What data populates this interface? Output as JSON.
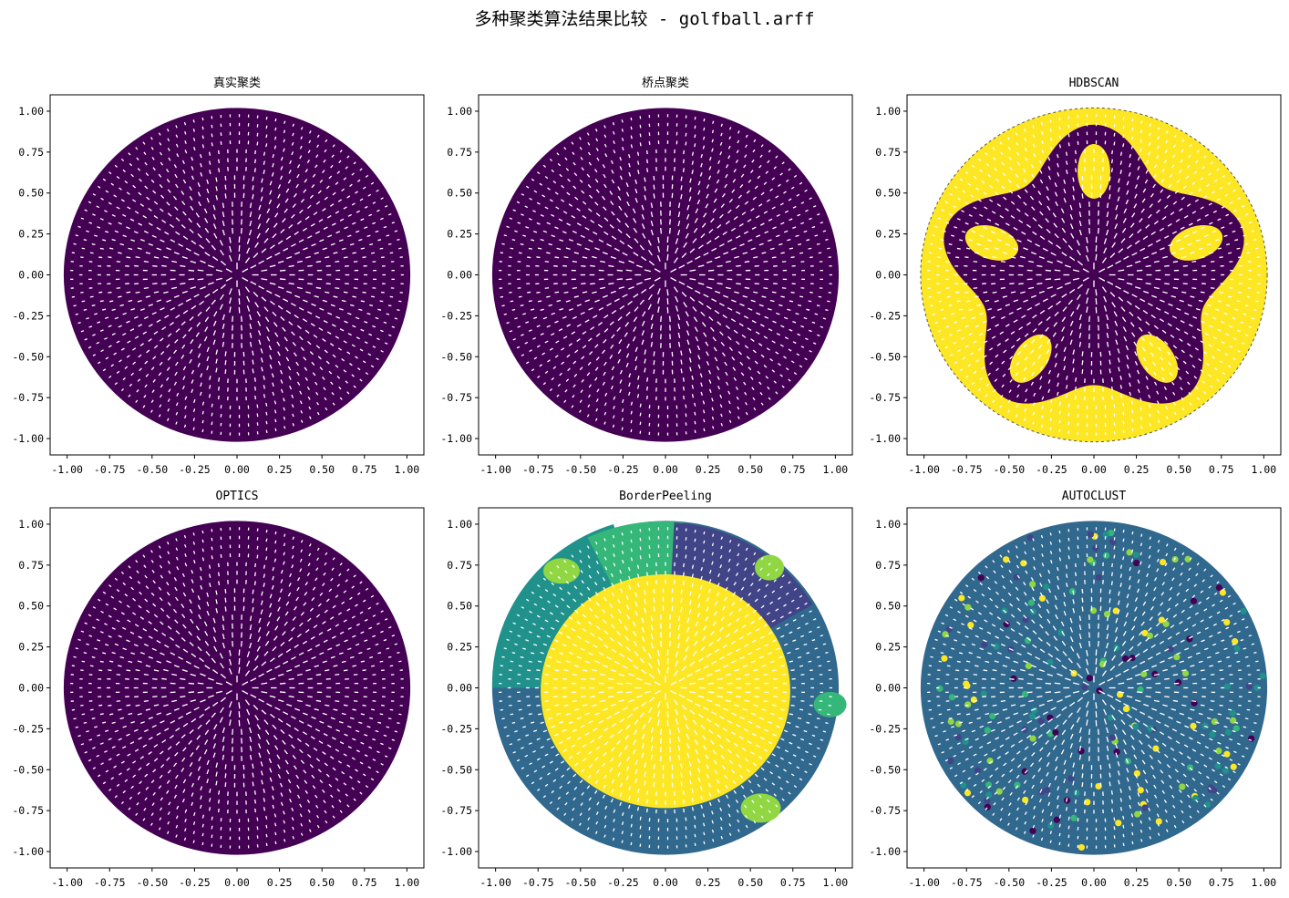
{
  "figure": {
    "title": "多种聚类算法结果比较 - golfball.arff"
  },
  "palette": {
    "purple": "#440154",
    "indigo": "#414487",
    "blue": "#31688e",
    "teal": "#21918c",
    "green": "#35b779",
    "lime": "#90d743",
    "yellow": "#fde725",
    "background": "#ffffff"
  },
  "chart_data": [
    {
      "type": "scatter",
      "title": "真实聚类",
      "xlim": [
        -1.1,
        1.1
      ],
      "ylim": [
        -1.1,
        1.1
      ],
      "xticks": [
        "-1.00",
        "-0.75",
        "-0.50",
        "-0.25",
        "0.00",
        "0.25",
        "0.50",
        "0.75",
        "1.00"
      ],
      "yticks": [
        "1.00",
        "0.75",
        "0.50",
        "0.25",
        "0.00",
        "-0.25",
        "-0.50",
        "-0.75",
        "-1.00"
      ],
      "grid": false,
      "points": "sphere surface points projected to the unit disk, radius about 1.02",
      "clusters": [
        {
          "color": "purple",
          "region": "all"
        }
      ]
    },
    {
      "type": "scatter",
      "title": "桥点聚类",
      "xlim": [
        -1.1,
        1.1
      ],
      "ylim": [
        -1.1,
        1.1
      ],
      "xticks": [
        "-1.00",
        "-0.75",
        "-0.50",
        "-0.25",
        "0.00",
        "0.25",
        "0.50",
        "0.75",
        "1.00"
      ],
      "yticks": [
        "1.00",
        "0.75",
        "0.50",
        "0.25",
        "0.00",
        "-0.25",
        "-0.50",
        "-0.75",
        "-1.00"
      ],
      "grid": false,
      "clusters": [
        {
          "color": "purple",
          "region": "all"
        }
      ]
    },
    {
      "type": "scatter",
      "title": "HDBSCAN",
      "xlim": [
        -1.1,
        1.1
      ],
      "ylim": [
        -1.1,
        1.1
      ],
      "xticks": [
        "-1.00",
        "-0.75",
        "-0.50",
        "-0.25",
        "0.00",
        "0.25",
        "0.50",
        "0.75",
        "1.00"
      ],
      "yticks": [
        "1.00",
        "0.75",
        "0.50",
        "0.25",
        "0.00",
        "-0.25",
        "-0.50",
        "-0.75",
        "-1.00"
      ],
      "grid": false,
      "clusters": [
        {
          "color": "yellow",
          "region": "outer ring and five notches"
        },
        {
          "color": "purple",
          "region": "inner five-lobed star"
        },
        {
          "color": "teal",
          "region": "small streaks"
        }
      ]
    },
    {
      "type": "scatter",
      "title": "OPTICS",
      "xlim": [
        -1.1,
        1.1
      ],
      "ylim": [
        -1.1,
        1.1
      ],
      "xticks": [
        "-1.00",
        "-0.75",
        "-0.50",
        "-0.25",
        "0.00",
        "0.25",
        "0.50",
        "0.75",
        "1.00"
      ],
      "yticks": [
        "1.00",
        "0.75",
        "0.50",
        "0.25",
        "0.00",
        "-0.25",
        "-0.50",
        "-0.75",
        "-1.00"
      ],
      "grid": false,
      "clusters": [
        {
          "color": "purple",
          "region": "all"
        }
      ]
    },
    {
      "type": "scatter",
      "title": "BorderPeeling",
      "xlim": [
        -1.1,
        1.1
      ],
      "ylim": [
        -1.1,
        1.1
      ],
      "xticks": [
        "-1.00",
        "-0.75",
        "-0.50",
        "-0.25",
        "0.00",
        "0.25",
        "0.50",
        "0.75",
        "1.00"
      ],
      "yticks": [
        "1.00",
        "0.75",
        "0.50",
        "0.25",
        "0.00",
        "-0.25",
        "-0.50",
        "-0.75",
        "-1.00"
      ],
      "grid": false,
      "clusters": [
        {
          "color": "blue",
          "region": "outer ring"
        },
        {
          "color": "teal",
          "region": "upper-left band"
        },
        {
          "color": "green",
          "region": "top band"
        },
        {
          "color": "indigo",
          "region": "upper-right"
        },
        {
          "color": "lime",
          "region": "small patches"
        },
        {
          "color": "yellow",
          "region": "central disk"
        }
      ]
    },
    {
      "type": "scatter",
      "title": "AUTOCLUST",
      "xlim": [
        -1.1,
        1.1
      ],
      "ylim": [
        -1.1,
        1.1
      ],
      "xticks": [
        "-1.00",
        "-0.75",
        "-0.50",
        "-0.25",
        "0.00",
        "0.25",
        "0.50",
        "0.75",
        "1.00"
      ],
      "yticks": [
        "1.00",
        "0.75",
        "0.50",
        "0.25",
        "0.00",
        "-0.25",
        "-0.50",
        "-0.75",
        "-1.00"
      ],
      "grid": false,
      "clusters": [
        {
          "color": "blue",
          "region": "majority"
        },
        {
          "color": "various",
          "region": "scattered small points"
        }
      ]
    }
  ]
}
